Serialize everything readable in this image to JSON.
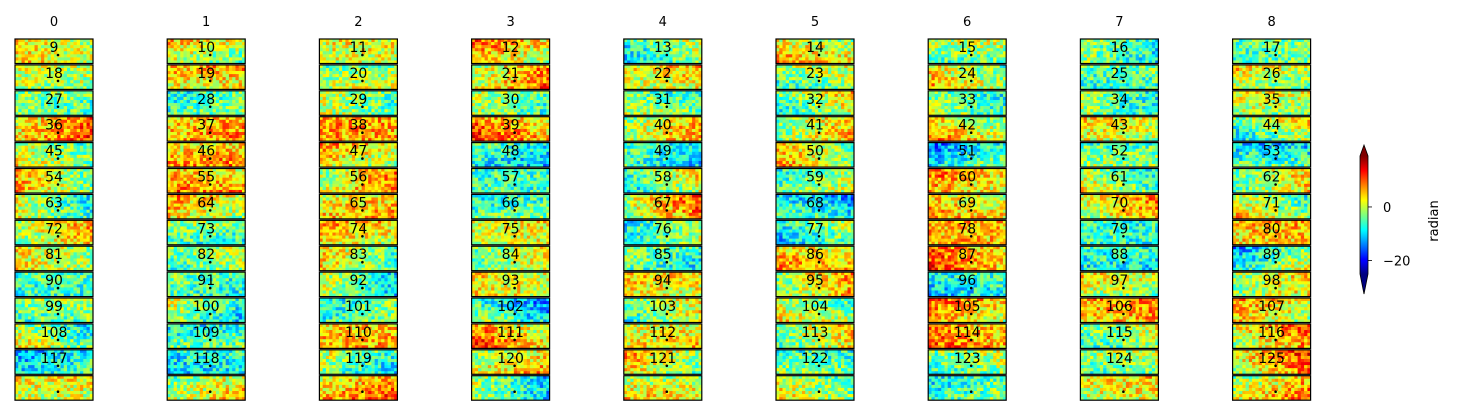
{
  "chart_data": {
    "type": "heatmap",
    "colormap": "jet",
    "columns": [
      "0",
      "1",
      "2",
      "3",
      "4",
      "5",
      "6",
      "7",
      "8"
    ],
    "rows_per_column": 14,
    "panel_labels": [
      [
        "9",
        "18",
        "27",
        "36",
        "45",
        "54",
        "63",
        "72",
        "81",
        "90",
        "99",
        "108",
        "117",
        ""
      ],
      [
        "10",
        "19",
        "28",
        "37",
        "46",
        "55",
        "64",
        "73",
        "82",
        "91",
        "100",
        "109",
        "118",
        ""
      ],
      [
        "11",
        "20",
        "29",
        "38",
        "47",
        "56",
        "65",
        "74",
        "83",
        "92",
        "101",
        "110",
        "119",
        ""
      ],
      [
        "12",
        "21",
        "30",
        "39",
        "48",
        "57",
        "66",
        "75",
        "84",
        "93",
        "102",
        "111",
        "120",
        ""
      ],
      [
        "13",
        "22",
        "31",
        "40",
        "49",
        "58",
        "67",
        "76",
        "85",
        "94",
        "103",
        "112",
        "121",
        ""
      ],
      [
        "14",
        "23",
        "32",
        "41",
        "50",
        "59",
        "68",
        "77",
        "86",
        "95",
        "104",
        "113",
        "122",
        ""
      ],
      [
        "15",
        "24",
        "33",
        "42",
        "51",
        "60",
        "69",
        "78",
        "87",
        "96",
        "105",
        "114",
        "123",
        ""
      ],
      [
        "16",
        "25",
        "34",
        "43",
        "52",
        "61",
        "70",
        "79",
        "88",
        "97",
        "106",
        "115",
        "124",
        ""
      ],
      [
        "17",
        "26",
        "35",
        "44",
        "53",
        "62",
        "71",
        "80",
        "89",
        "98",
        "107",
        "116",
        "125",
        ""
      ]
    ],
    "colorbar": {
      "label": "radian",
      "ticks": [
        "0",
        "−20"
      ],
      "tick_values": [
        0,
        -20
      ],
      "range": [
        -25,
        19
      ],
      "extend": "both"
    }
  }
}
